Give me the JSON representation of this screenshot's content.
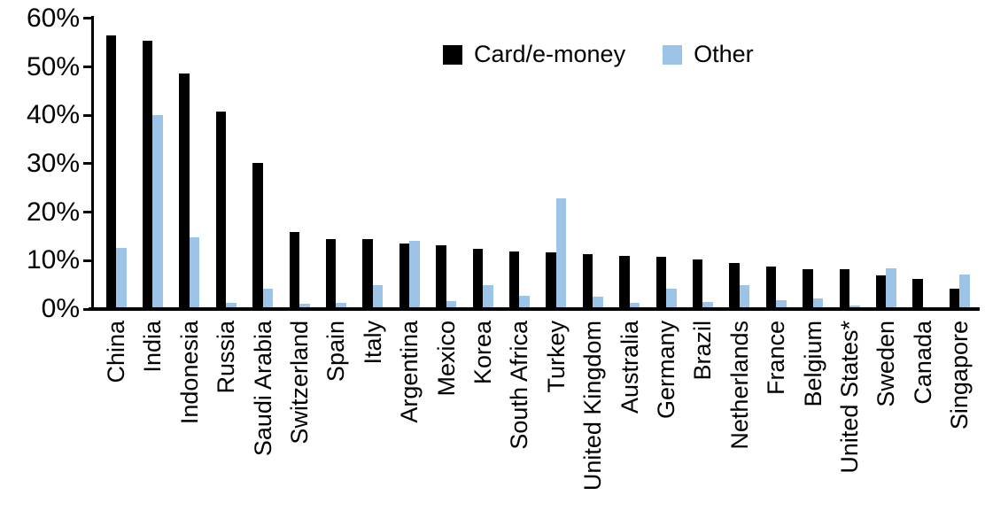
{
  "chart_data": {
    "type": "bar",
    "title": "",
    "xlabel": "",
    "ylabel": "",
    "ylim": [
      0,
      60
    ],
    "ytick_step": 10,
    "ytick_labels": [
      "0%",
      "10%",
      "20%",
      "30%",
      "40%",
      "50%",
      "60%"
    ],
    "grid": false,
    "legend_position": "top-center",
    "categories": [
      "China",
      "India",
      "Indonesia",
      "Russia",
      "Saudi Arabia",
      "Switzerland",
      "Spain",
      "Italy",
      "Argentina",
      "Mexico",
      "Korea",
      "South Africa",
      "Turkey",
      "United Kingdom",
      "Australia",
      "Germany",
      "Brazil",
      "Netherlands",
      "France",
      "Belgium",
      "United States*",
      "Sweden",
      "Canada",
      "Singapore"
    ],
    "series": [
      {
        "name": "Card/e-money",
        "color": "#000000",
        "values": [
          56.2,
          55.0,
          48.3,
          40.5,
          29.8,
          15.6,
          14.1,
          14.0,
          13.2,
          12.8,
          12.1,
          11.5,
          11.4,
          10.9,
          10.6,
          10.4,
          9.8,
          9.1,
          8.5,
          7.9,
          7.8,
          6.5,
          5.9,
          3.9
        ]
      },
      {
        "name": "Other",
        "color": "#9DC3E6",
        "values": [
          12.3,
          39.7,
          14.5,
          1.0,
          3.9,
          0.8,
          0.9,
          4.5,
          13.7,
          1.3,
          4.6,
          2.3,
          22.5,
          2.2,
          0.9,
          3.8,
          1.1,
          4.6,
          1.4,
          1.9,
          0.3,
          8.0,
          0.0,
          6.7
        ]
      }
    ]
  }
}
